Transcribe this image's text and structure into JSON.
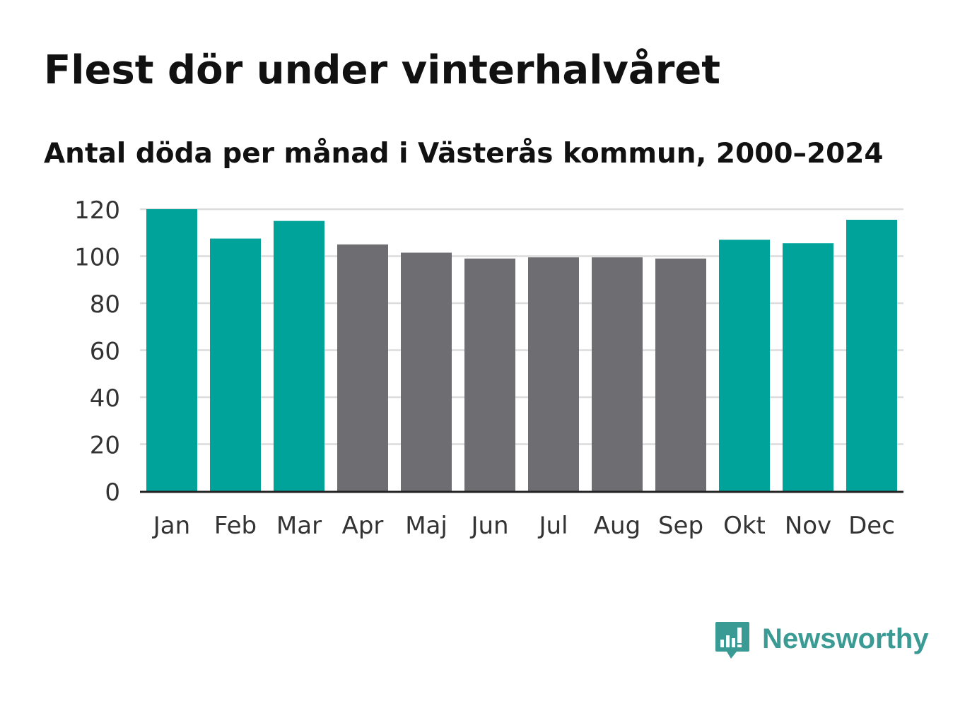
{
  "title": "Flest dör under vinterhalvåret",
  "subtitle": "Antal döda per månad i Västerås kommun, 2000–2024",
  "brand": {
    "name": "Newsworthy",
    "color": "#3a9a94"
  },
  "colors": {
    "winter": "#00a39a",
    "summer": "#6e6d72",
    "grid": "#dcdcdc",
    "axis": "#222222",
    "tick_text": "#333333"
  },
  "chart_data": {
    "type": "bar",
    "title": "Flest dör under vinterhalvåret",
    "subtitle": "Antal döda per månad i Västerås kommun, 2000–2024",
    "xlabel": "",
    "ylabel": "",
    "ylim": [
      0,
      120
    ],
    "yticks": [
      0,
      20,
      40,
      60,
      80,
      100,
      120
    ],
    "grid": true,
    "categories": [
      "Jan",
      "Feb",
      "Mar",
      "Apr",
      "Maj",
      "Jun",
      "Jul",
      "Aug",
      "Sep",
      "Okt",
      "Nov",
      "Dec"
    ],
    "values": [
      120,
      107.5,
      115,
      105,
      101.5,
      99,
      99.5,
      99.5,
      99,
      107,
      105.5,
      115.5
    ],
    "color_groups": [
      "winter",
      "winter",
      "winter",
      "summer",
      "summer",
      "summer",
      "summer",
      "summer",
      "summer",
      "winter",
      "winter",
      "winter"
    ]
  }
}
